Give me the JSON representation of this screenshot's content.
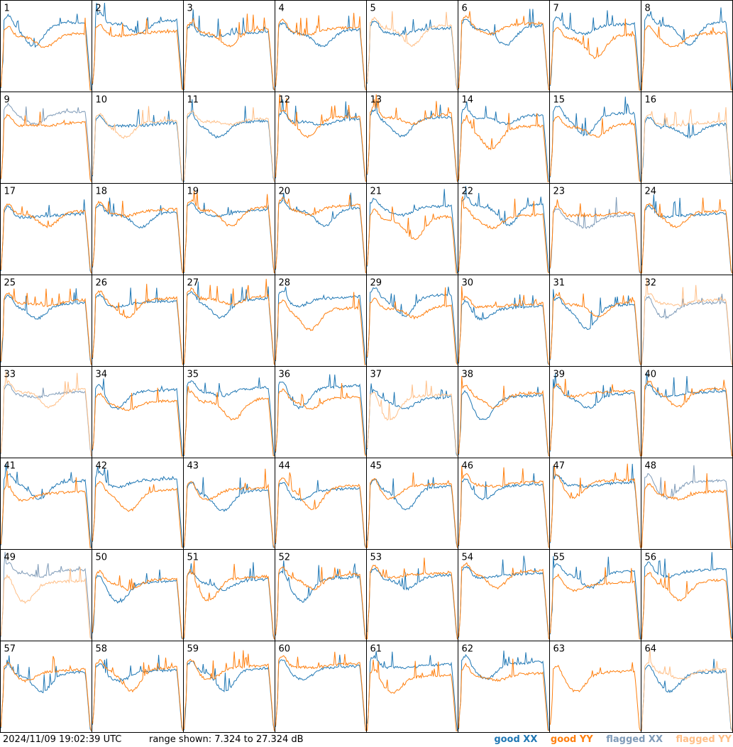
{
  "footer": {
    "timestamp": "2024/11/09 19:02:39 UTC",
    "range_text": "range shown: 7.324 to 27.324 dB",
    "legend": [
      {
        "label": "good XX",
        "color": "#1f77b4"
      },
      {
        "label": "good YY",
        "color": "#ff7f0e"
      },
      {
        "label": "flagged XX",
        "color": "#7f9bb8"
      },
      {
        "label": "flagged YY",
        "color": "#ffbf87"
      }
    ]
  },
  "chart_data": {
    "type": "line",
    "ylim": [
      7.324,
      27.324
    ],
    "grid_layout": "8x8",
    "colors": {
      "good_xx": "#1f77b4",
      "good_yy": "#ff7f0e",
      "flagged_xx": "#7f9bb8",
      "flagged_yy": "#ffbf87"
    },
    "panels": [
      {
        "id": "1",
        "xx": "good",
        "yy": "good"
      },
      {
        "id": "2",
        "xx": "good",
        "yy": "good"
      },
      {
        "id": "3",
        "xx": "good",
        "yy": "good"
      },
      {
        "id": "4",
        "xx": "good",
        "yy": "good"
      },
      {
        "id": "5",
        "xx": "good",
        "yy": "flagged"
      },
      {
        "id": "6",
        "xx": "good",
        "yy": "good"
      },
      {
        "id": "7",
        "xx": "good",
        "yy": "good"
      },
      {
        "id": "8",
        "xx": "good",
        "yy": "good"
      },
      {
        "id": "9",
        "xx": "flagged",
        "yy": "good"
      },
      {
        "id": "10",
        "xx": "good",
        "yy": "flagged"
      },
      {
        "id": "11",
        "xx": "good",
        "yy": "flagged"
      },
      {
        "id": "12",
        "xx": "good",
        "yy": "good"
      },
      {
        "id": "13",
        "xx": "good",
        "yy": "good"
      },
      {
        "id": "14",
        "xx": "good",
        "yy": "good"
      },
      {
        "id": "15",
        "xx": "good",
        "yy": "good"
      },
      {
        "id": "16",
        "xx": "good",
        "yy": "flagged"
      },
      {
        "id": "17",
        "xx": "good",
        "yy": "good"
      },
      {
        "id": "18",
        "xx": "good",
        "yy": "good"
      },
      {
        "id": "19",
        "xx": "good",
        "yy": "good"
      },
      {
        "id": "20",
        "xx": "good",
        "yy": "good"
      },
      {
        "id": "21",
        "xx": "good",
        "yy": "good"
      },
      {
        "id": "22",
        "xx": "good",
        "yy": "good"
      },
      {
        "id": "23",
        "xx": "flagged",
        "yy": "good"
      },
      {
        "id": "24",
        "xx": "good",
        "yy": "good"
      },
      {
        "id": "25",
        "xx": "good",
        "yy": "good"
      },
      {
        "id": "26",
        "xx": "good",
        "yy": "good"
      },
      {
        "id": "27",
        "xx": "good",
        "yy": "good"
      },
      {
        "id": "28",
        "xx": "good",
        "yy": "good"
      },
      {
        "id": "29",
        "xx": "good",
        "yy": "good"
      },
      {
        "id": "30",
        "xx": "good",
        "yy": "good"
      },
      {
        "id": "31",
        "xx": "good",
        "yy": "good"
      },
      {
        "id": "32",
        "xx": "flagged",
        "yy": "flagged"
      },
      {
        "id": "33",
        "xx": "flagged",
        "yy": "flagged"
      },
      {
        "id": "34",
        "xx": "good",
        "yy": "good"
      },
      {
        "id": "35",
        "xx": "good",
        "yy": "good"
      },
      {
        "id": "36",
        "xx": "good",
        "yy": "good"
      },
      {
        "id": "37",
        "xx": "good",
        "yy": "flagged"
      },
      {
        "id": "38",
        "xx": "good",
        "yy": "good"
      },
      {
        "id": "39",
        "xx": "good",
        "yy": "good"
      },
      {
        "id": "40",
        "xx": "good",
        "yy": "good"
      },
      {
        "id": "41",
        "xx": "good",
        "yy": "good"
      },
      {
        "id": "42",
        "xx": "good",
        "yy": "good"
      },
      {
        "id": "43",
        "xx": "good",
        "yy": "good"
      },
      {
        "id": "44",
        "xx": "good",
        "yy": "good"
      },
      {
        "id": "45",
        "xx": "good",
        "yy": "good"
      },
      {
        "id": "46",
        "xx": "good",
        "yy": "good"
      },
      {
        "id": "47",
        "xx": "good",
        "yy": "good"
      },
      {
        "id": "48",
        "xx": "flagged",
        "yy": "good"
      },
      {
        "id": "49",
        "xx": "flagged",
        "yy": "flagged"
      },
      {
        "id": "50",
        "xx": "good",
        "yy": "good"
      },
      {
        "id": "51",
        "xx": "good",
        "yy": "good"
      },
      {
        "id": "52",
        "xx": "good",
        "yy": "good"
      },
      {
        "id": "53",
        "xx": "good",
        "yy": "good"
      },
      {
        "id": "54",
        "xx": "good",
        "yy": "good"
      },
      {
        "id": "55",
        "xx": "good",
        "yy": "good"
      },
      {
        "id": "56",
        "xx": "good",
        "yy": "good"
      },
      {
        "id": "57",
        "xx": "good",
        "yy": "good"
      },
      {
        "id": "58",
        "xx": "good",
        "yy": "good"
      },
      {
        "id": "59",
        "xx": "good",
        "yy": "good"
      },
      {
        "id": "60",
        "xx": "good",
        "yy": "good"
      },
      {
        "id": "61",
        "xx": "good",
        "yy": "good"
      },
      {
        "id": "62",
        "xx": "good",
        "yy": "good"
      },
      {
        "id": "63",
        "xx": "none",
        "yy": "good"
      },
      {
        "id": "64",
        "xx": "good",
        "yy": "flagged"
      }
    ]
  }
}
